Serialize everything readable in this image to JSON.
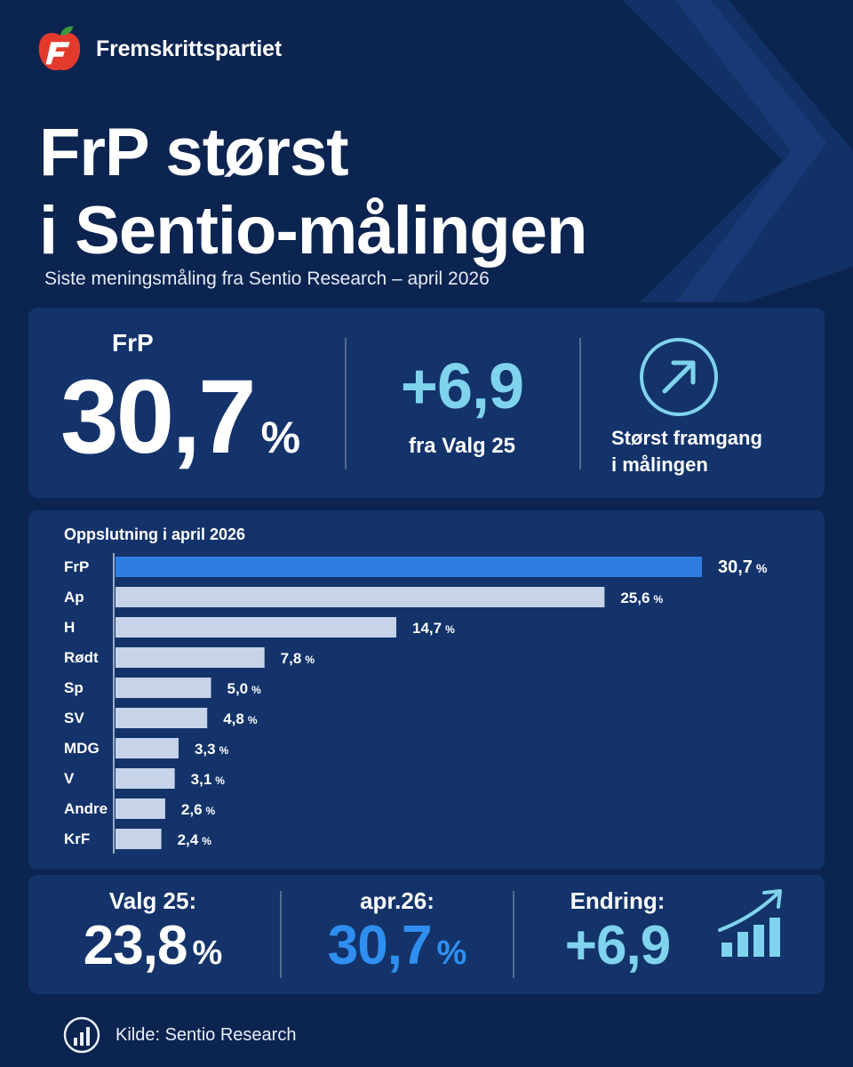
{
  "brand": {
    "name": "Fremskrittspartiet"
  },
  "headline": {
    "line1": "FrP størst",
    "line2": "i Sentio-målingen"
  },
  "subtitle": "Siste meningsmåling fra Sentio Research – april 2026",
  "top_panel": {
    "party": "FrP",
    "value": "30,7",
    "unit": "%",
    "change": "+6,9",
    "change_label": "fra Valg 25",
    "note_line1": "Størst framgang",
    "note_line2": "i målingen",
    "icon": "arrow-up-right-icon"
  },
  "chart_data": {
    "type": "bar",
    "orientation": "horizontal",
    "title": "Oppslutning i april 2026",
    "categories": [
      "FrP",
      "Ap",
      "H",
      "Rødt",
      "Sp",
      "SV",
      "MDG",
      "V",
      "Andre",
      "KrF"
    ],
    "values": [
      30.7,
      25.6,
      14.7,
      7.8,
      5.0,
      4.8,
      3.3,
      3.1,
      2.6,
      2.4
    ],
    "value_labels": [
      "30,7",
      "25,6",
      "14,7",
      "7,8",
      "5,0",
      "4,8",
      "3,3",
      "3,1",
      "2,6",
      "2,4"
    ],
    "unit": "%",
    "highlight": "FrP",
    "colors": {
      "highlight": "#2f7de1",
      "default": "#c6d3e8"
    }
  },
  "bottom_panel": {
    "valg_label": "Valg 25:",
    "valg_value": "23,8",
    "apr_label": "apr.26:",
    "apr_value": "30,7",
    "endring_label": "Endring:",
    "endring_value": "+6,9",
    "unit": "%",
    "icon": "growth-chart-icon"
  },
  "footer": {
    "text": "Kilde: Sentio Research",
    "icon": "bar-chart-circle-icon"
  },
  "colors": {
    "background": "#0b2450",
    "panel": "#13336a",
    "accent_light": "#7fd3ec",
    "accent_blue": "#2f7de1",
    "brand_red": "#e23b2e"
  }
}
